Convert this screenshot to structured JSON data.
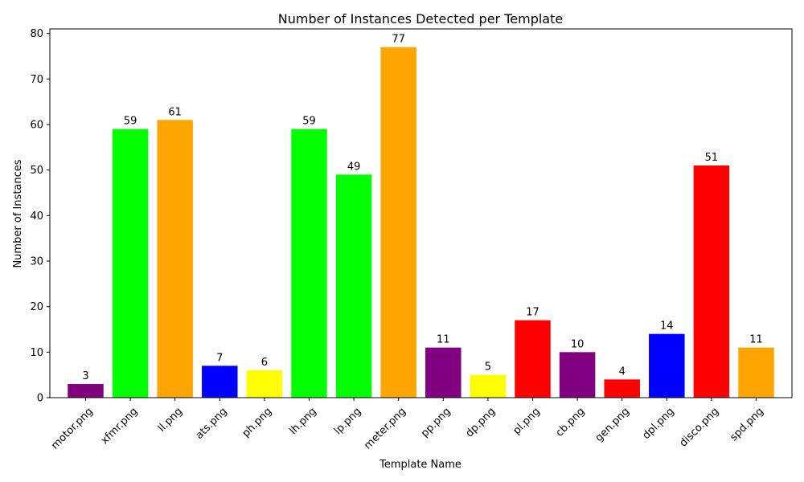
{
  "chart_data": {
    "type": "bar",
    "title": "Number of Instances Detected per Template",
    "xlabel": "Template Name",
    "ylabel": "Number of Instances",
    "ylim": [
      0,
      81
    ],
    "yticks": [
      0,
      10,
      20,
      30,
      40,
      50,
      60,
      70,
      80
    ],
    "grid": false,
    "legend": "none",
    "categories": [
      "motor.png",
      "xfmr.png",
      "ll.png",
      "ats.png",
      "ph.png",
      "lh.png",
      "lp.png",
      "meter.png",
      "pp.png",
      "dp.png",
      "pl.png",
      "cb.png",
      "gen.png",
      "dpl.png",
      "disco.png",
      "spd.png"
    ],
    "values": [
      3,
      59,
      61,
      7,
      6,
      59,
      49,
      77,
      11,
      5,
      17,
      10,
      4,
      14,
      51,
      11
    ],
    "colors": [
      "#800080",
      "#00ff00",
      "#ffa500",
      "#0000ff",
      "#ffff00",
      "#00ff00",
      "#00ff00",
      "#ffa500",
      "#800080",
      "#ffff00",
      "#ff0000",
      "#800080",
      "#ff0000",
      "#0000ff",
      "#ff0000",
      "#ffa500"
    ]
  }
}
